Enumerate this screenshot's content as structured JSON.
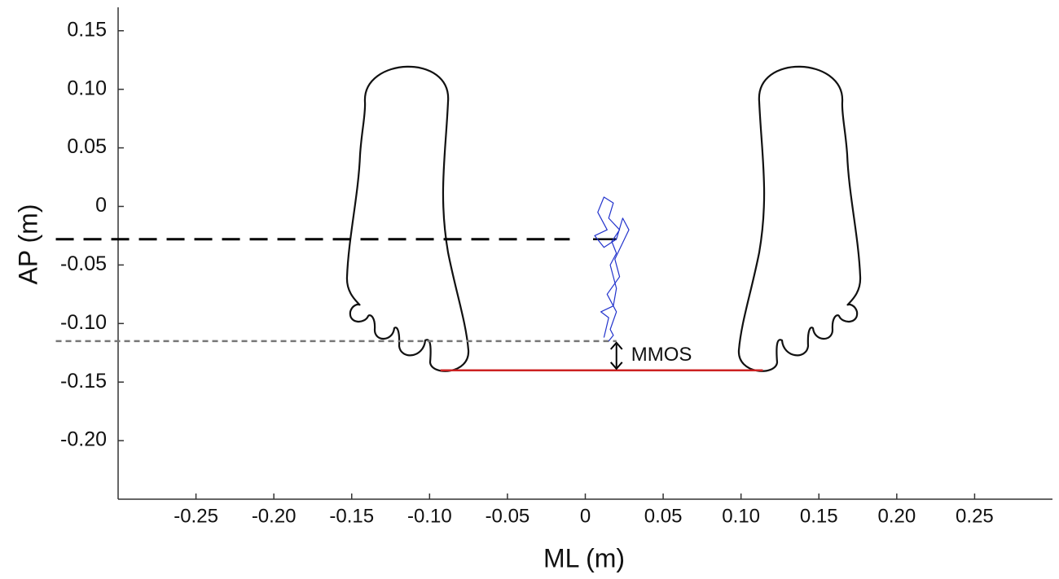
{
  "chart_data": {
    "type": "line",
    "xlabel": "ML (m)",
    "ylabel": "AP (m)",
    "xlim": [
      -0.3,
      0.3
    ],
    "ylim": [
      -0.25,
      0.17
    ],
    "xticks": [
      -0.25,
      {
        "value": -0.2,
        "label": "-0.20"
      },
      -0.15,
      {
        "value": -0.1,
        "label": "-0.10"
      },
      -0.05,
      0,
      0.05,
      {
        "value": 0.1,
        "label": "0.10"
      },
      0.15,
      {
        "value": 0.2,
        "label": "0.20"
      },
      0.25
    ],
    "yticks": [
      0.15,
      {
        "value": 0.1,
        "label": "0.10"
      },
      0.05,
      0,
      -0.05,
      {
        "value": -0.1,
        "label": "-0.10"
      },
      -0.15,
      {
        "value": -0.2,
        "label": "-0.20"
      }
    ],
    "series": [
      {
        "color": "#2233cc",
        "x": [
          0.012,
          0.015,
          0.01,
          0.018,
          0.02,
          0.016,
          0.02,
          0.017,
          0.022,
          0.015,
          0.018,
          0.012,
          0.008,
          0.014,
          0.006,
          0.012,
          0.02,
          0.024,
          0.028,
          0.019,
          0.022,
          0.014,
          0.02,
          0.016,
          0.018,
          0.015
        ],
        "values": [
          -0.112,
          -0.095,
          -0.09,
          -0.085,
          -0.07,
          -0.05,
          -0.04,
          -0.03,
          -0.02,
          -0.01,
          0.003,
          0.008,
          -0.005,
          -0.02,
          -0.025,
          -0.035,
          -0.028,
          -0.01,
          -0.02,
          -0.045,
          -0.06,
          -0.075,
          -0.09,
          -0.105,
          -0.11,
          -0.115
        ]
      }
    ],
    "reference_lines": [
      {
        "x": [
          -0.34,
          -0.01
        ],
        "y": -0.028,
        "color": "#000000",
        "style": "long-dash"
      },
      {
        "x": [
          0.005,
          0.02
        ],
        "y": -0.028,
        "color": "#000000",
        "style": "solid"
      },
      {
        "x": [
          -0.34,
          0.02
        ],
        "y": -0.115,
        "color": "#777777",
        "style": "short-dash"
      },
      {
        "x": [
          -0.093,
          0.114
        ],
        "y": -0.14,
        "color": "#cc2222",
        "style": "solid"
      }
    ],
    "annotation": {
      "text": "MMOS",
      "x": 0.02,
      "y_range": [
        -0.14,
        -0.115
      ]
    }
  }
}
